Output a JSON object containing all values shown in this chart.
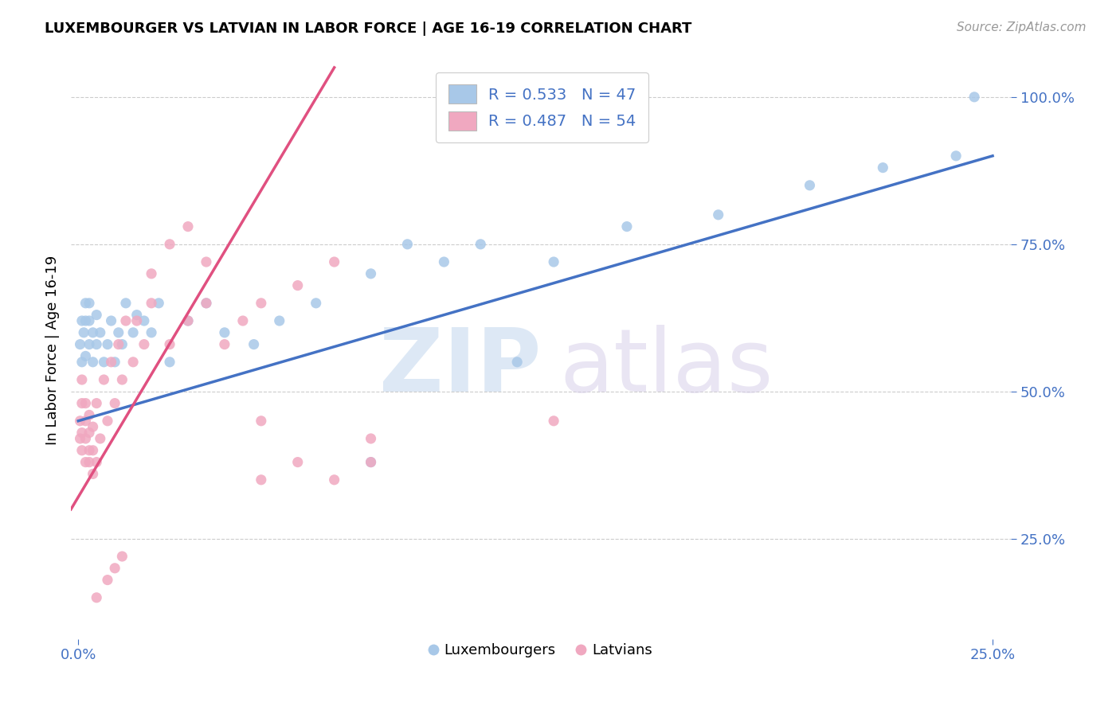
{
  "title": "LUXEMBOURGER VS LATVIAN IN LABOR FORCE | AGE 16-19 CORRELATION CHART",
  "source_text": "Source: ZipAtlas.com",
  "ylabel": "In Labor Force | Age 16-19",
  "xlim": [
    -0.002,
    0.255
  ],
  "ylim": [
    0.08,
    1.06
  ],
  "ytick_labels": [
    "25.0%",
    "50.0%",
    "75.0%",
    "100.0%"
  ],
  "ytick_vals": [
    0.25,
    0.5,
    0.75,
    1.0
  ],
  "xtick_vals": [
    0.0,
    0.25
  ],
  "xtick_labels": [
    "0.0%",
    "25.0%"
  ],
  "legend_label_lux": "Luxembourgers",
  "legend_label_lat": "Latvians",
  "blue_dot_color": "#a8c8e8",
  "pink_dot_color": "#f0a8c0",
  "blue_line_color": "#4472c4",
  "pink_line_color": "#e05080",
  "lux_x": [
    0.0005,
    0.001,
    0.001,
    0.0015,
    0.002,
    0.002,
    0.002,
    0.003,
    0.003,
    0.003,
    0.004,
    0.004,
    0.005,
    0.005,
    0.006,
    0.007,
    0.008,
    0.009,
    0.01,
    0.011,
    0.012,
    0.013,
    0.015,
    0.016,
    0.018,
    0.02,
    0.022,
    0.025,
    0.03,
    0.035,
    0.04,
    0.048,
    0.055,
    0.065,
    0.08,
    0.09,
    0.1,
    0.11,
    0.13,
    0.15,
    0.175,
    0.2,
    0.22,
    0.24,
    0.08,
    0.12,
    0.245
  ],
  "lux_y": [
    0.58,
    0.55,
    0.62,
    0.6,
    0.56,
    0.62,
    0.65,
    0.58,
    0.62,
    0.65,
    0.55,
    0.6,
    0.58,
    0.63,
    0.6,
    0.55,
    0.58,
    0.62,
    0.55,
    0.6,
    0.58,
    0.65,
    0.6,
    0.63,
    0.62,
    0.6,
    0.65,
    0.55,
    0.62,
    0.65,
    0.6,
    0.58,
    0.62,
    0.65,
    0.7,
    0.75,
    0.72,
    0.75,
    0.72,
    0.78,
    0.8,
    0.85,
    0.88,
    0.9,
    0.38,
    0.55,
    1.0
  ],
  "lat_x": [
    0.0005,
    0.0005,
    0.001,
    0.001,
    0.001,
    0.001,
    0.002,
    0.002,
    0.002,
    0.002,
    0.003,
    0.003,
    0.003,
    0.003,
    0.004,
    0.004,
    0.004,
    0.005,
    0.005,
    0.006,
    0.007,
    0.008,
    0.009,
    0.01,
    0.011,
    0.012,
    0.013,
    0.015,
    0.016,
    0.018,
    0.02,
    0.025,
    0.03,
    0.035,
    0.04,
    0.045,
    0.05,
    0.06,
    0.07,
    0.02,
    0.025,
    0.03,
    0.035,
    0.05,
    0.13,
    0.05,
    0.06,
    0.07,
    0.08,
    0.08,
    0.005,
    0.008,
    0.01,
    0.012
  ],
  "lat_y": [
    0.42,
    0.45,
    0.4,
    0.43,
    0.48,
    0.52,
    0.38,
    0.42,
    0.45,
    0.48,
    0.38,
    0.4,
    0.43,
    0.46,
    0.36,
    0.4,
    0.44,
    0.38,
    0.48,
    0.42,
    0.52,
    0.45,
    0.55,
    0.48,
    0.58,
    0.52,
    0.62,
    0.55,
    0.62,
    0.58,
    0.65,
    0.58,
    0.62,
    0.65,
    0.58,
    0.62,
    0.65,
    0.68,
    0.72,
    0.7,
    0.75,
    0.78,
    0.72,
    0.45,
    0.45,
    0.35,
    0.38,
    0.35,
    0.38,
    0.42,
    0.15,
    0.18,
    0.2,
    0.22
  ]
}
